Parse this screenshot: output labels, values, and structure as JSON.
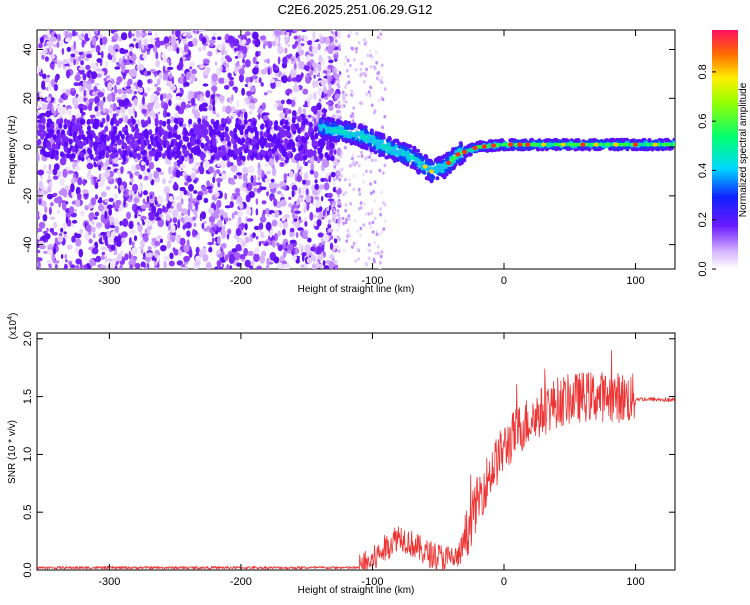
{
  "page": {
    "title": "C2E6.2025.251.06.29.G12"
  },
  "chart_data": [
    {
      "type": "heatmap",
      "title": "C2E6.2025.251.06.29.G12",
      "xlabel": "Height of straight line (km)",
      "ylabel": "Frequency (Hz)",
      "xlim": [
        -355,
        130
      ],
      "ylim": [
        -50,
        48
      ],
      "xticks": [
        -300,
        -200,
        -100,
        0,
        100
      ],
      "yticks": [
        -40,
        -20,
        0,
        20,
        40
      ],
      "colorbar": {
        "label": "Normalized spectral amplitude",
        "range": [
          0.0,
          0.97
        ],
        "ticks": [
          0.0,
          0.2,
          0.4,
          0.6,
          0.8
        ]
      },
      "ridge": {
        "description_points_x": [
          -140,
          -110,
          -90,
          -70,
          -55,
          -45,
          -35,
          -20,
          0,
          40,
          80,
          130
        ],
        "description_points_y": [
          8,
          5,
          0,
          -4,
          -10,
          -8,
          -3,
          0,
          1,
          1,
          1,
          1
        ]
      }
    },
    {
      "type": "line",
      "series_name": "SNR",
      "color": "#ee3333",
      "xlabel": "Height of straight line (km)",
      "ylabel": "SNR (10 * v/v)",
      "yscale_label": "(x10",
      "yscale_exp": "4",
      "yscale_close": ")",
      "xlim": [
        -355,
        130
      ],
      "ylim": [
        0,
        2.05
      ],
      "xticks": [
        -300,
        -200,
        -100,
        0,
        100
      ],
      "yticks": [
        0.0,
        0.5,
        1.0,
        1.5,
        2.0
      ],
      "ytick_labels": [
        "0.0",
        "0.5",
        "1.0",
        "1.5",
        "2.0"
      ],
      "envelope": {
        "x": [
          -355,
          -110,
          -100,
          -80,
          -60,
          -45,
          -35,
          -30,
          -20,
          -10,
          0,
          10,
          20,
          30,
          40,
          60,
          80,
          100,
          130
        ],
        "y": [
          0.02,
          0.02,
          0.08,
          0.3,
          0.15,
          0.1,
          0.1,
          0.25,
          0.6,
          0.85,
          1.05,
          1.2,
          1.3,
          1.38,
          1.45,
          1.5,
          1.5,
          1.48,
          1.47
        ]
      }
    }
  ]
}
